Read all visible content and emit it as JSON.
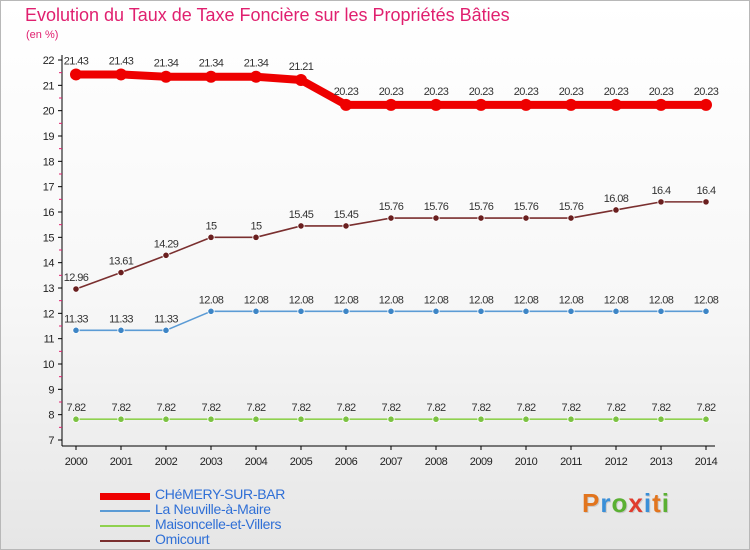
{
  "chart_data": {
    "type": "line",
    "title": "Evolution du Taux de Taxe Foncière sur les Propriétés Bâties",
    "ylabel": "(en %)",
    "xlabel": "",
    "categories": [
      "2000",
      "2001",
      "2002",
      "2003",
      "2004",
      "2005",
      "2006",
      "2007",
      "2008",
      "2009",
      "2010",
      "2011",
      "2012",
      "2013",
      "2014"
    ],
    "y_ticks": [
      "7",
      "8",
      "9",
      "10",
      "11",
      "12",
      "13",
      "14",
      "15",
      "16",
      "17",
      "18",
      "19",
      "20",
      "21",
      "22"
    ],
    "ylim": [
      7,
      22
    ],
    "grid": false,
    "legend_position": "bottom-left",
    "series": [
      {
        "name": "CHéMERY-SUR-BAR",
        "color": "#ee0000",
        "marker": "#ee0000",
        "values": [
          21.43,
          21.43,
          21.34,
          21.34,
          21.34,
          21.21,
          20.23,
          20.23,
          20.23,
          20.23,
          20.23,
          20.23,
          20.23,
          20.23,
          20.23
        ],
        "labels": [
          "21.43",
          "21.43",
          "21.34",
          "21.34",
          "21.34",
          "21.21",
          "20.23",
          "20.23",
          "20.23",
          "20.23",
          "20.23",
          "20.23",
          "20.23",
          "20.23",
          "20.23"
        ]
      },
      {
        "name": "La Neuville-à-Maire",
        "color": "#5b9bd5",
        "marker": "#3d85c6",
        "values": [
          11.33,
          11.33,
          11.33,
          12.08,
          12.08,
          12.08,
          12.08,
          12.08,
          12.08,
          12.08,
          12.08,
          12.08,
          12.08,
          12.08,
          12.08
        ],
        "labels": [
          "11.33",
          "11.33",
          "11.33",
          "12.08",
          "12.08",
          "12.08",
          "12.08",
          "12.08",
          "12.08",
          "12.08",
          "12.08",
          "12.08",
          "12.08",
          "12.08",
          "12.08"
        ]
      },
      {
        "name": "Maisoncelle-et-Villers",
        "color": "#8fd14f",
        "marker": "#7cc242",
        "values": [
          7.82,
          7.82,
          7.82,
          7.82,
          7.82,
          7.82,
          7.82,
          7.82,
          7.82,
          7.82,
          7.82,
          7.82,
          7.82,
          7.82,
          7.82
        ],
        "labels": [
          "7.82",
          "7.82",
          "7.82",
          "7.82",
          "7.82",
          "7.82",
          "7.82",
          "7.82",
          "7.82",
          "7.82",
          "7.82",
          "7.82",
          "7.82",
          "7.82",
          "7.82"
        ]
      },
      {
        "name": "Omicourt",
        "color": "#7a2f2f",
        "marker": "#6a1f1f",
        "values": [
          12.96,
          13.61,
          14.29,
          15,
          15,
          15.45,
          15.45,
          15.76,
          15.76,
          15.76,
          15.76,
          15.76,
          16.08,
          16.4,
          16.4
        ],
        "labels": [
          "12.96",
          "13.61",
          "14.29",
          "15",
          "15",
          "15.45",
          "15.45",
          "15.76",
          "15.76",
          "15.76",
          "15.76",
          "15.76",
          "16.08",
          "16.4",
          "16.4"
        ]
      }
    ]
  },
  "logo": {
    "letters": [
      "P",
      "r",
      "o",
      "x",
      "i",
      "t",
      "i"
    ],
    "colors": [
      "#e2751e",
      "#3a8fd8",
      "#5bb033",
      "#e03c2e",
      "#3a8fd8",
      "#e2751e",
      "#5bb033"
    ]
  }
}
